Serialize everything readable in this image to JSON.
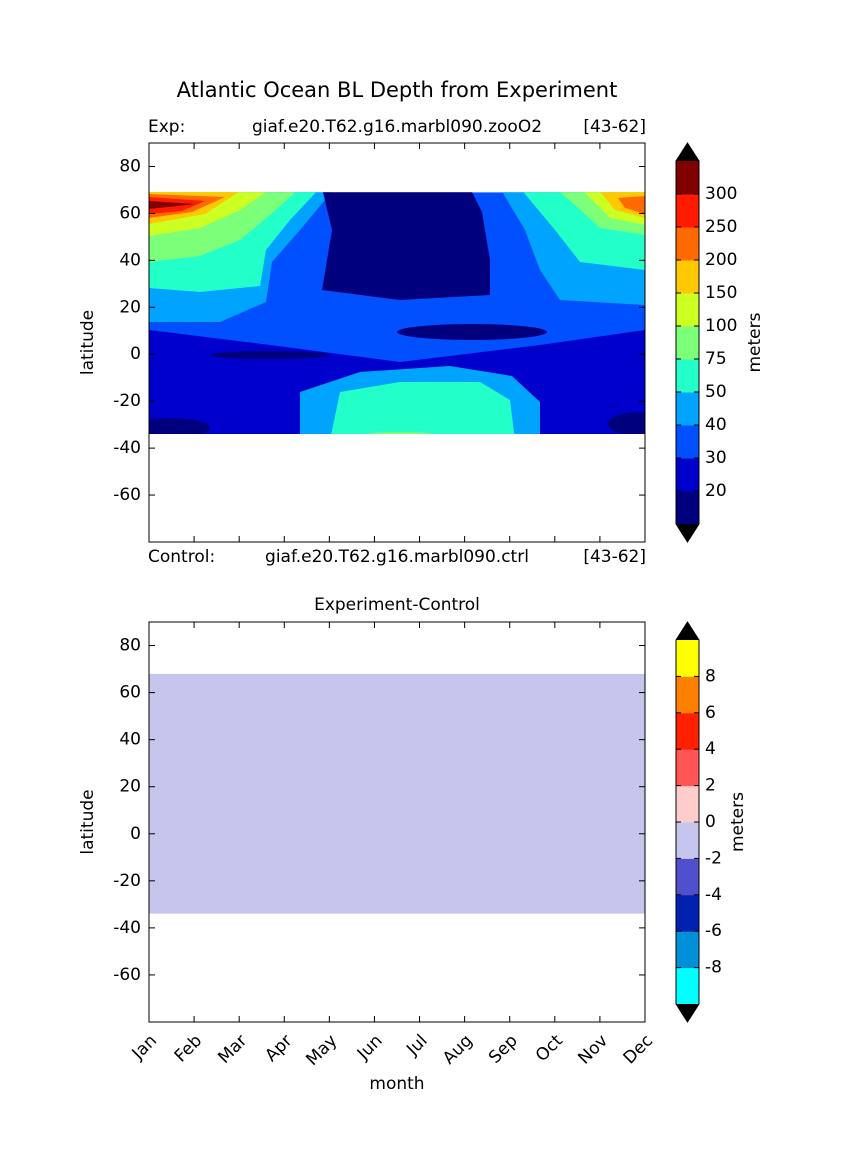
{
  "suptitle": "Atlantic Ocean BL Depth from Experiment",
  "chart_data": [
    {
      "type": "contour",
      "subtitle": {
        "left": "Exp:",
        "center": "giaf.e20.T62.g16.marbl090.zooO2",
        "right": "[43-62]"
      },
      "ylabel": "latitude",
      "ylim": [
        -80,
        90
      ],
      "yticks": [
        -60,
        -40,
        -20,
        0,
        20,
        40,
        60,
        80
      ],
      "field_lat": [
        -34,
        69
      ],
      "colorbar": {
        "label": "meters",
        "ticks": [
          20,
          30,
          40,
          50,
          75,
          100,
          150,
          200,
          250,
          300
        ],
        "colors": [
          "#00007f",
          "#0000cd",
          "#0050ff",
          "#00a4ff",
          "#22ffc8",
          "#7cff79",
          "#ccff22",
          "#ffc800",
          "#ff6a00",
          "#ff1a00",
          "#800000"
        ],
        "extend_color": "#000000"
      },
      "caption": {
        "left": "Control:",
        "center": "giaf.e20.T62.g16.marbl090.ctrl",
        "right": "[43-62]"
      }
    },
    {
      "type": "contour",
      "title": "Experiment-Control",
      "ylabel": "latitude",
      "xlabel": "month",
      "categories": [
        "Jan",
        "Feb",
        "Mar",
        "Apr",
        "May",
        "Jun",
        "Jul",
        "Aug",
        "Sep",
        "Oct",
        "Nov",
        "Dec"
      ],
      "ylim": [
        -80,
        90
      ],
      "yticks": [
        -60,
        -40,
        -20,
        0,
        20,
        40,
        60,
        80
      ],
      "field_lat": [
        -34,
        68
      ],
      "colorbar": {
        "label": "meters",
        "ticks": [
          -8,
          -6,
          -4,
          -2,
          0,
          2,
          4,
          6,
          8
        ],
        "colors": [
          "#00ffff",
          "#0090d8",
          "#0020b0",
          "#5050cc",
          "#c5c5ee",
          "#ffcccc",
          "#ff5555",
          "#ff2000",
          "#ff8000",
          "#ffff00"
        ],
        "extend_color": "#000000"
      }
    }
  ]
}
